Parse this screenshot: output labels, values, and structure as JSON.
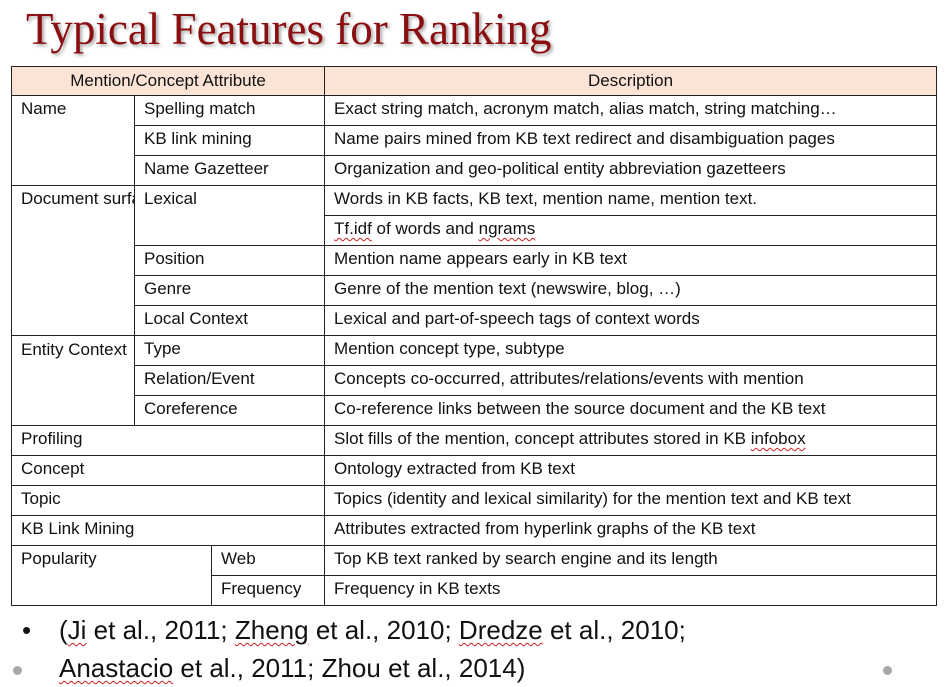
{
  "title": "Typical Features for Ranking",
  "table": {
    "header_attribute": "Mention/Concept Attribute",
    "header_description": "Description",
    "cells": {
      "name": "Name",
      "spelling_match": "Spelling match",
      "spelling_match_desc": "Exact string match, acronym match, alias match, string matching…",
      "kb_link_mining_sub": "KB link mining",
      "kb_link_mining_sub_desc": "Name pairs mined from KB text redirect and disambiguation pages",
      "name_gazetteer": "Name Gazetteer",
      "name_gazetteer_desc": "Organization and geo-political entity abbreviation gazetteers",
      "document_surface": "Document surface",
      "lexical": "Lexical",
      "lexical_desc1": "Words in KB facts, KB text, mention name, mention text.",
      "lexical_desc2_a": "Tf.idf",
      "lexical_desc2_b": " of words and ",
      "lexical_desc2_c": "ngrams",
      "position": "Position",
      "position_desc": "Mention name appears early in KB text",
      "genre": "Genre",
      "genre_desc": "Genre of the mention text (newswire, blog, …)",
      "local_context": "Local Context",
      "local_context_desc": "Lexical and part-of-speech tags of context words",
      "entity_context": "Entity Context",
      "type": "Type",
      "type_desc": "Mention concept type, subtype",
      "relation_event": "Relation/Event",
      "relation_event_desc": "Concepts co-occurred, attributes/relations/events with mention",
      "coreference": "Coreference",
      "coreference_desc": "Co-reference links between the source document and the KB text",
      "profiling": "Profiling",
      "profiling_desc_a": "Slot fills of the mention, concept attributes stored in KB ",
      "profiling_desc_b": "infobox",
      "concept": "Concept",
      "concept_desc": "Ontology extracted from KB text",
      "topic": "Topic",
      "topic_desc": "Topics (identity and lexical similarity) for the mention text and KB text",
      "kb_link_mining": "KB Link Mining",
      "kb_link_mining_desc": "Attributes extracted from hyperlink graphs of the KB text",
      "popularity": "Popularity",
      "web": "Web",
      "web_desc": "Top KB text ranked by search engine and its length",
      "frequency": "Frequency",
      "frequency_desc": "Frequency in KB texts"
    }
  },
  "references": {
    "bullet": "•",
    "line1_parts": [
      "(",
      "Ji",
      " et al., 2011; ",
      "Zheng",
      " et al., 2010; ",
      "Dredze",
      " et al., 2010;"
    ],
    "line2_parts": [
      "Anastacio",
      " et al., 2011; Zhou et al., 2014)"
    ]
  },
  "colors": {
    "title": "#8B0E10",
    "header_background": "#FBE4D5",
    "spellcheck_underline": "#d02020"
  }
}
